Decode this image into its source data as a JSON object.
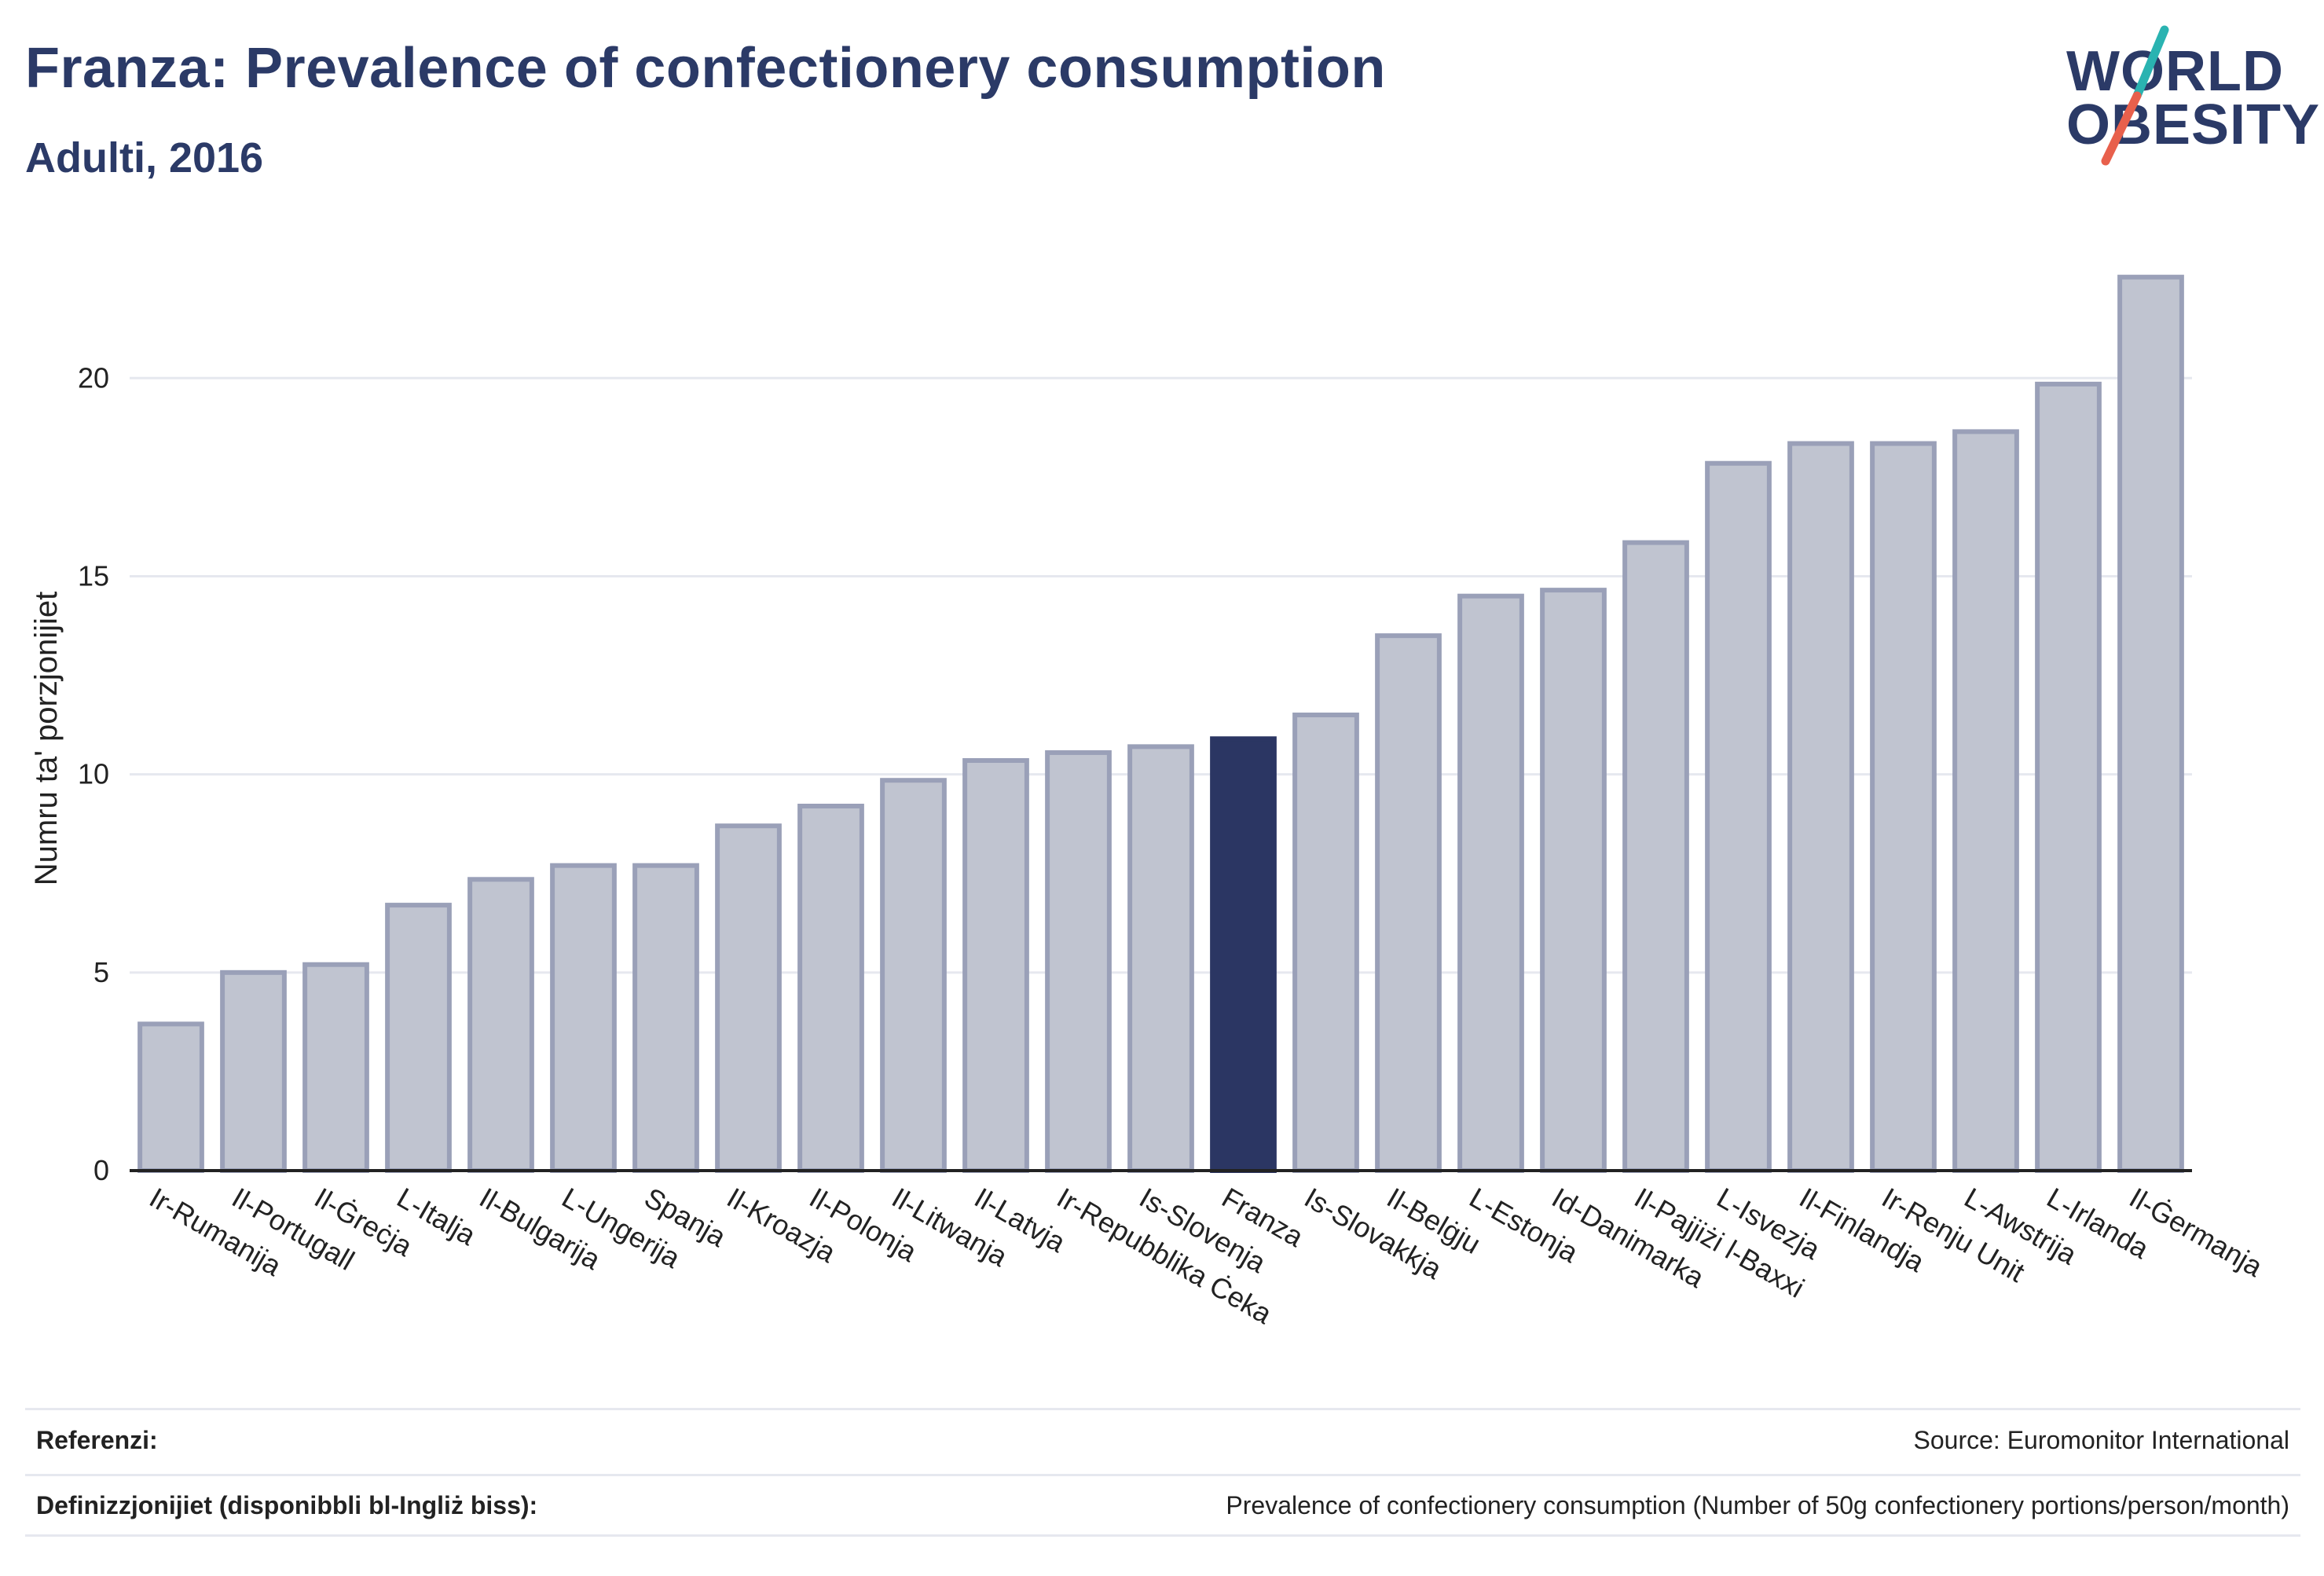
{
  "header": {
    "title": "Franza: Prevalence of confectionery consumption",
    "subtitle": "Adulti, 2016"
  },
  "logo": {
    "line1": "WORLD",
    "line2": "OBESITY",
    "accent_colors": [
      "#2ab3b1",
      "#e8604c"
    ]
  },
  "chart_data": {
    "type": "bar",
    "title": "Franza: Prevalence of confectionery consumption",
    "subtitle": "Adulti, 2016",
    "xlabel": "",
    "ylabel": "Numru ta' porzjonijiet",
    "ylim": [
      0,
      23
    ],
    "yticks": [
      0,
      5,
      10,
      15,
      20
    ],
    "grid": true,
    "highlight": "Franza",
    "colors": {
      "bar": "#c0c4d0",
      "bar_border": "#9aa0b8",
      "highlight": "#2b3663",
      "grid": "#e6e8ef",
      "axis": "#222222"
    },
    "categories": [
      "Ir-Rumanija",
      "Il-Portugall",
      "Il-Ġreċja",
      "L-Italja",
      "Il-Bulgarija",
      "L-Ungerija",
      "Spanja",
      "Il-Kroazja",
      "Il-Polonja",
      "Il-Litwanja",
      "Il-Latvja",
      "Ir-Repubblika Ċeka",
      "Is-Slovenja",
      "Franza",
      "Is-Slovakkja",
      "Il-Belġju",
      "L-Estonja",
      "Id-Danimarka",
      "Il-Pajjiżi l-Baxxi",
      "L-Isvezja",
      "Il-Finlandja",
      "Ir-Renju Unit",
      "L-Awstrija",
      "L-Irlanda",
      "Il-Ġermanja"
    ],
    "values": [
      3.7,
      5.0,
      5.2,
      6.7,
      7.35,
      7.7,
      7.7,
      8.7,
      9.2,
      9.85,
      10.35,
      10.55,
      10.7,
      10.9,
      11.5,
      13.5,
      14.5,
      14.65,
      15.85,
      17.85,
      18.35,
      18.35,
      18.65,
      19.85,
      22.55
    ]
  },
  "footer": {
    "references_label": "Referenzi:",
    "references_value": "Source: Euromonitor International",
    "definitions_label": "Definizzjonijiet (disponibbli bl-Ingliż biss):",
    "definitions_value": "Prevalence of confectionery consumption (Number of 50g confectionery portions/person/month)"
  }
}
